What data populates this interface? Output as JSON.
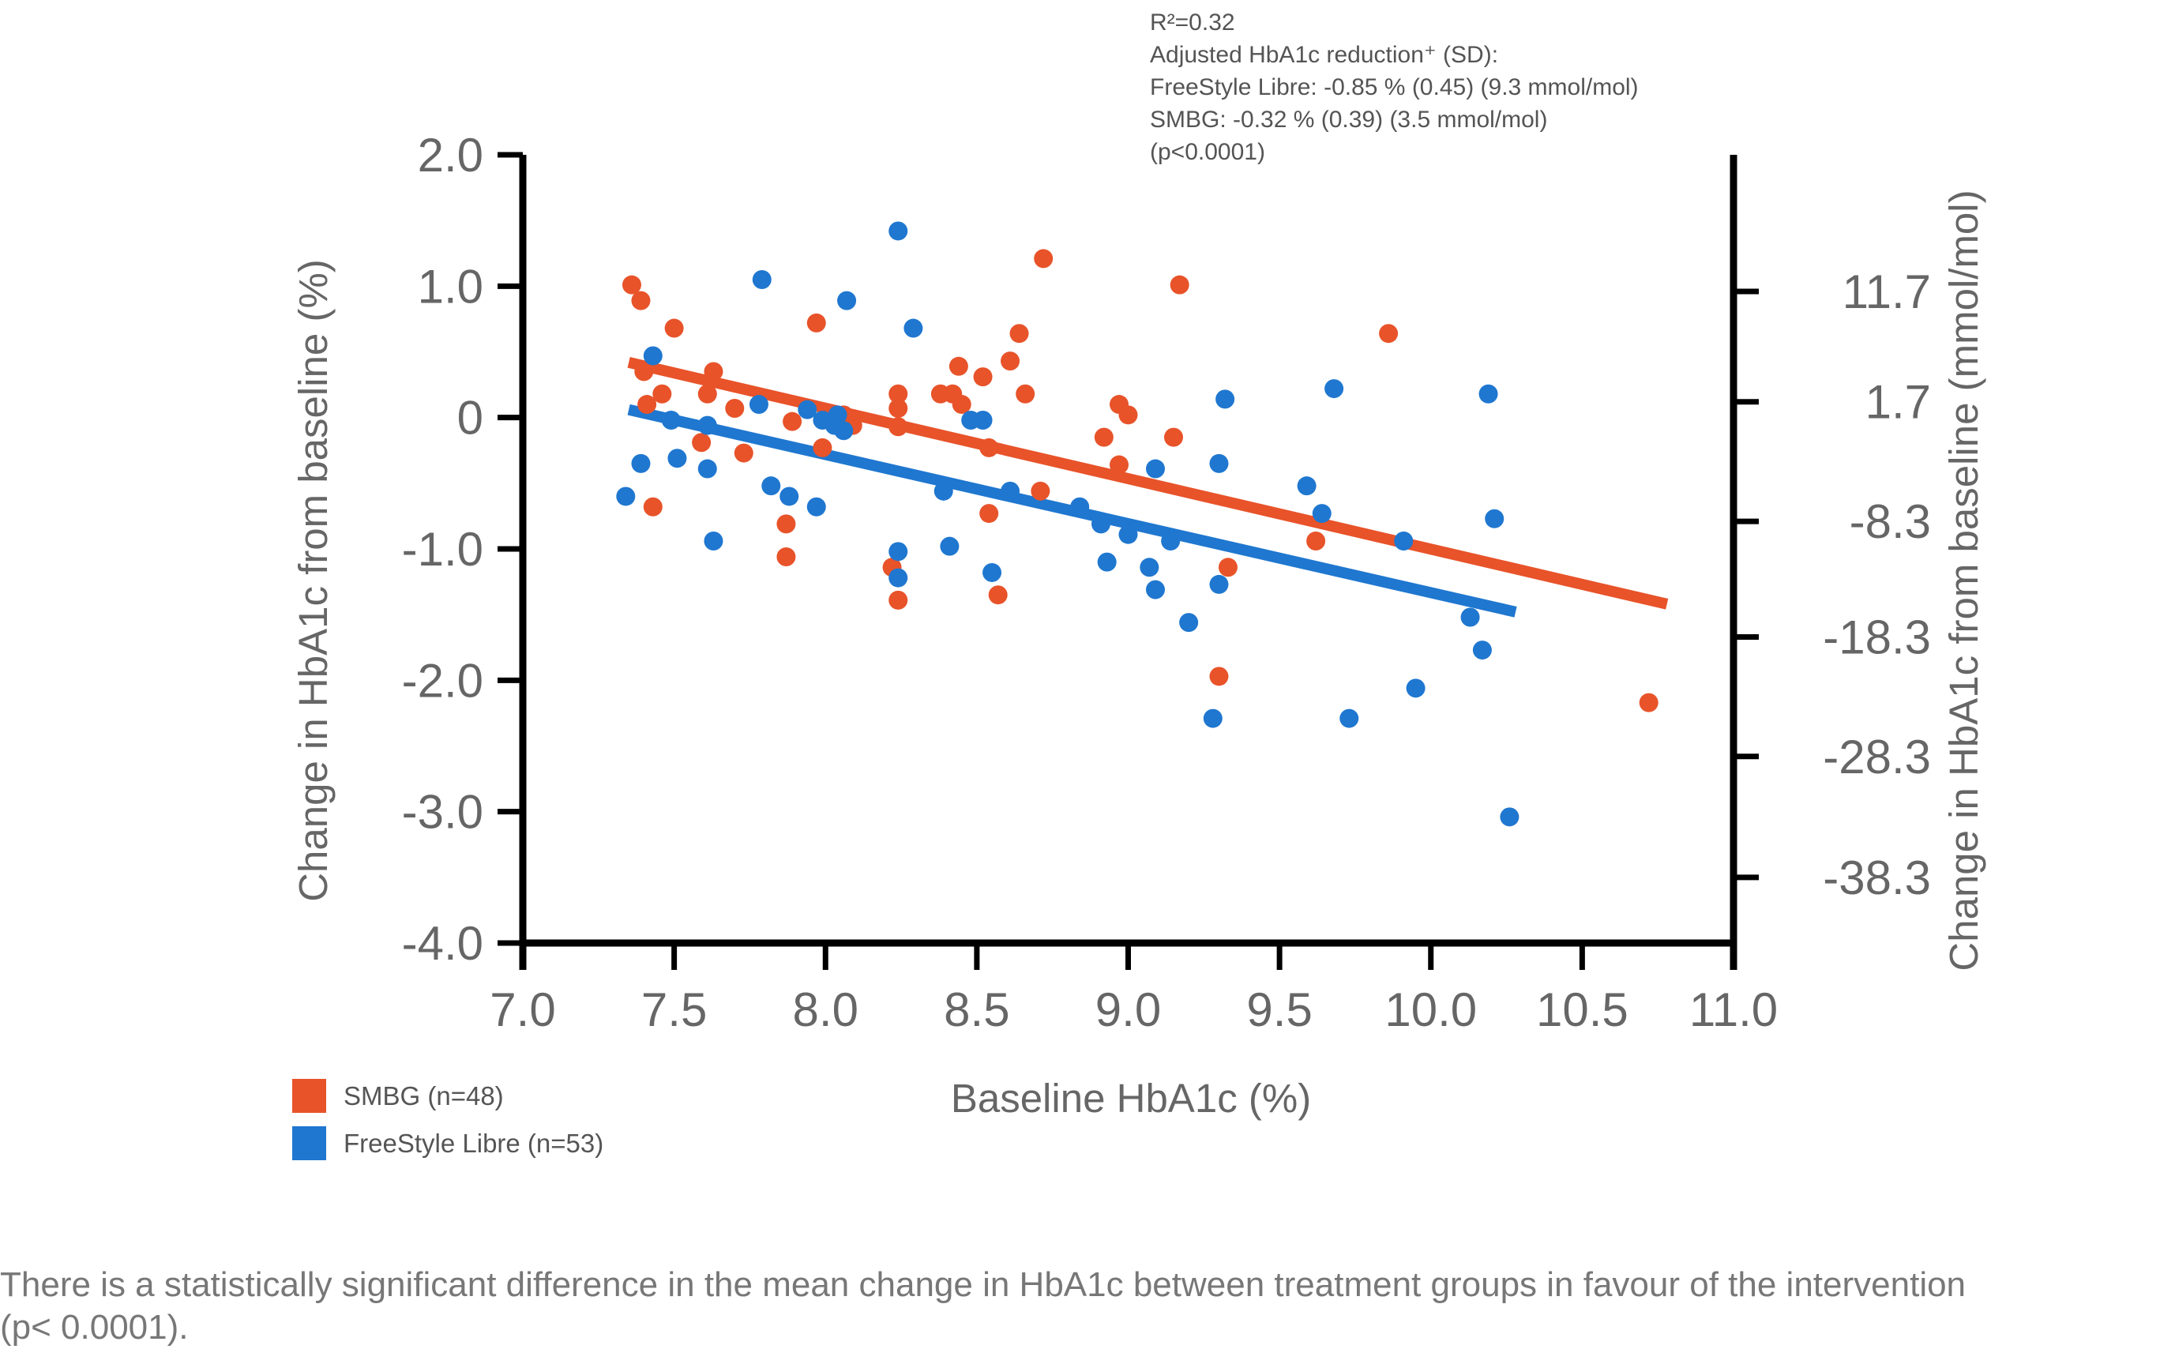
{
  "chart_data": {
    "type": "scatter",
    "stats_annotation": [
      "R²=0.32",
      "Adjusted HbA1c reduction⁺ (SD):",
      "FreeStyle Libre: -0.85 % (0.45) (9.3 mmol/mol)",
      "SMBG: -0.32 % (0.39) (3.5 mmol/mol)",
      "(p<0.0001)"
    ],
    "xlabel": "Baseline HbA1c (%)",
    "ylabel": "Change in HbA1c from baseline (%)",
    "ylabel_right": "Change in HbA1c from baseline (mmol/mol)",
    "xlim": [
      7.0,
      11.0
    ],
    "ylim": [
      -4.0,
      2.0
    ],
    "x_ticks": [
      "7.0",
      "7.5",
      "8.0",
      "8.5",
      "9.0",
      "9.5",
      "10.0",
      "10.5",
      "11.0"
    ],
    "y_ticks": [
      {
        "value": 2.0,
        "label": "2.0"
      },
      {
        "value": 1.0,
        "label": "1.0"
      },
      {
        "value": 0.0,
        "label": "0"
      },
      {
        "value": -1.0,
        "label": "-1.0"
      },
      {
        "value": -2.0,
        "label": "-2.0"
      },
      {
        "value": -3.0,
        "label": "-3.0"
      },
      {
        "value": -4.0,
        "label": "-4.0"
      }
    ],
    "y_right_ticks": [
      {
        "value": 0.96,
        "label": "11.7"
      },
      {
        "value": 0.12,
        "label": "1.7"
      },
      {
        "value": -0.79,
        "label": "-8.3"
      },
      {
        "value": -1.67,
        "label": "-18.3"
      },
      {
        "value": -2.58,
        "label": "-28.3"
      },
      {
        "value": -3.5,
        "label": "-38.3"
      }
    ],
    "grid": false,
    "legend_position": "bottom-left",
    "series": [
      {
        "name": "SMBG (n=48)",
        "color": "#E8532A",
        "trend": {
          "x": [
            7.35,
            10.78
          ],
          "y": [
            0.42,
            -1.42
          ]
        },
        "points": [
          [
            7.36,
            1.01
          ],
          [
            7.39,
            0.89
          ],
          [
            7.4,
            0.35
          ],
          [
            7.41,
            0.1
          ],
          [
            7.43,
            -0.68
          ],
          [
            7.46,
            0.18
          ],
          [
            7.5,
            0.68
          ],
          [
            7.59,
            -0.19
          ],
          [
            7.61,
            0.18
          ],
          [
            7.63,
            0.35
          ],
          [
            7.7,
            0.07
          ],
          [
            7.73,
            -0.27
          ],
          [
            7.87,
            -0.81
          ],
          [
            7.87,
            -1.06
          ],
          [
            7.89,
            -0.03
          ],
          [
            7.97,
            0.72
          ],
          [
            7.99,
            -0.23
          ],
          [
            8.09,
            -0.06
          ],
          [
            8.22,
            -1.14
          ],
          [
            8.24,
            0.18
          ],
          [
            8.24,
            0.07
          ],
          [
            8.24,
            -0.07
          ],
          [
            8.24,
            -1.39
          ],
          [
            8.38,
            0.18
          ],
          [
            8.42,
            0.18
          ],
          [
            8.44,
            0.39
          ],
          [
            8.45,
            0.1
          ],
          [
            8.52,
            0.31
          ],
          [
            8.54,
            -0.23
          ],
          [
            8.54,
            -0.73
          ],
          [
            8.57,
            -1.35
          ],
          [
            8.61,
            0.43
          ],
          [
            8.64,
            0.64
          ],
          [
            8.66,
            0.18
          ],
          [
            8.71,
            -0.56
          ],
          [
            8.72,
            1.21
          ],
          [
            8.92,
            -0.15
          ],
          [
            8.97,
            0.1
          ],
          [
            8.97,
            -0.36
          ],
          [
            9.0,
            0.02
          ],
          [
            9.15,
            -0.15
          ],
          [
            9.17,
            1.01
          ],
          [
            9.3,
            -1.97
          ],
          [
            9.33,
            -1.14
          ],
          [
            9.62,
            -0.94
          ],
          [
            9.86,
            0.64
          ],
          [
            10.72,
            -2.17
          ],
          [
            8.06,
            0.02
          ]
        ]
      },
      {
        "name": "FreeStyle Libre (n=53)",
        "color": "#1F77D0",
        "trend": {
          "x": [
            7.35,
            10.28
          ],
          "y": [
            0.06,
            -1.48
          ]
        },
        "points": [
          [
            7.34,
            -0.6
          ],
          [
            7.39,
            -0.35
          ],
          [
            7.43,
            0.47
          ],
          [
            7.49,
            -0.02
          ],
          [
            7.51,
            -0.31
          ],
          [
            7.61,
            -0.06
          ],
          [
            7.61,
            -0.39
          ],
          [
            7.63,
            -0.94
          ],
          [
            7.78,
            0.1
          ],
          [
            7.79,
            1.05
          ],
          [
            7.82,
            -0.52
          ],
          [
            7.88,
            -0.6
          ],
          [
            7.94,
            0.06
          ],
          [
            7.97,
            -0.68
          ],
          [
            7.99,
            -0.02
          ],
          [
            8.03,
            -0.06
          ],
          [
            8.04,
            0.02
          ],
          [
            8.06,
            -0.1
          ],
          [
            8.07,
            0.89
          ],
          [
            8.24,
            1.42
          ],
          [
            8.24,
            -1.02
          ],
          [
            8.24,
            -1.22
          ],
          [
            8.29,
            0.68
          ],
          [
            8.39,
            -0.56
          ],
          [
            8.41,
            -0.98
          ],
          [
            8.48,
            -0.02
          ],
          [
            8.52,
            -0.02
          ],
          [
            8.55,
            -1.18
          ],
          [
            8.61,
            -0.56
          ],
          [
            8.84,
            -0.68
          ],
          [
            8.91,
            -0.81
          ],
          [
            8.93,
            -1.1
          ],
          [
            9.0,
            -0.89
          ],
          [
            9.07,
            -1.14
          ],
          [
            9.09,
            -1.31
          ],
          [
            9.09,
            -0.39
          ],
          [
            9.14,
            -0.94
          ],
          [
            9.2,
            -1.56
          ],
          [
            9.28,
            -2.29
          ],
          [
            9.3,
            -1.27
          ],
          [
            9.3,
            -0.35
          ],
          [
            9.32,
            0.14
          ],
          [
            9.59,
            -0.52
          ],
          [
            9.64,
            -0.73
          ],
          [
            9.68,
            0.22
          ],
          [
            9.73,
            -2.29
          ],
          [
            9.91,
            -0.94
          ],
          [
            9.95,
            -2.06
          ],
          [
            10.13,
            -1.52
          ],
          [
            10.17,
            -1.77
          ],
          [
            10.19,
            0.18
          ],
          [
            10.21,
            -0.77
          ],
          [
            10.26,
            -3.04
          ]
        ]
      }
    ]
  },
  "footnote": "There is a statistically significant difference in the mean change in HbA1c between treatment groups in favour of the intervention (p< 0.0001)."
}
